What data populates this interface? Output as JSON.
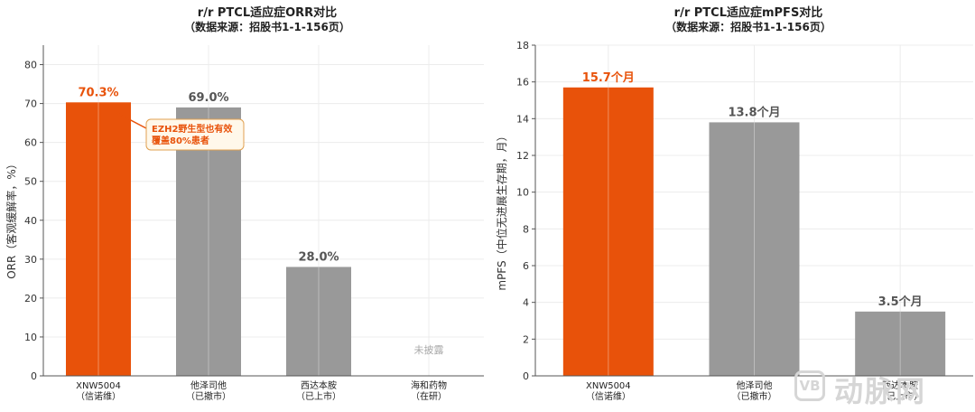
{
  "colors": {
    "highlight": "#e8520a",
    "neutral": "#999999",
    "note_border": "#e0a050",
    "note_text": "#e8520a"
  },
  "chart_data": [
    {
      "type": "bar",
      "title": "r/r PTCL适应症ORR对比",
      "subtitle": "（数据来源：招股书1-1-156页）",
      "ylabel": "ORR（客观缓解率，%）",
      "ylim": [
        0,
        85
      ],
      "yticks": [
        0,
        10,
        20,
        30,
        40,
        50,
        60,
        70,
        80
      ],
      "categories": [
        "XNW5004\n（信诺维）",
        "他泽司他\n（已撤市）",
        "西达本胺\n（已上市）",
        "海和药物\n（在研）"
      ],
      "values": [
        70.3,
        69.0,
        28.0,
        null
      ],
      "data_labels": [
        "70.3%",
        "69.0%",
        "28.0%",
        "未披露"
      ],
      "highlight_index": 0,
      "annotation": {
        "text": [
          "EZH2野生型也有效",
          "覆盖80%患者"
        ],
        "target_index": 0
      }
    },
    {
      "type": "bar",
      "title": "r/r PTCL适应症mPFS对比",
      "subtitle": "（数据来源：招股书1-1-156页）",
      "ylabel": "mPFS（中位无进展生存期，月）",
      "ylim": [
        0,
        18
      ],
      "yticks": [
        0,
        2,
        4,
        6,
        8,
        10,
        12,
        14,
        16,
        18
      ],
      "categories": [
        "XNW5004\n（信诺维）",
        "他泽司他\n（已撤市）",
        "西达本胺\n（已上市）"
      ],
      "values": [
        15.7,
        13.8,
        3.5
      ],
      "data_labels": [
        "15.7个月",
        "13.8个月",
        "3.5个月"
      ],
      "highlight_index": 0
    }
  ],
  "watermark": {
    "logo": "VB",
    "text": "动脉网"
  }
}
